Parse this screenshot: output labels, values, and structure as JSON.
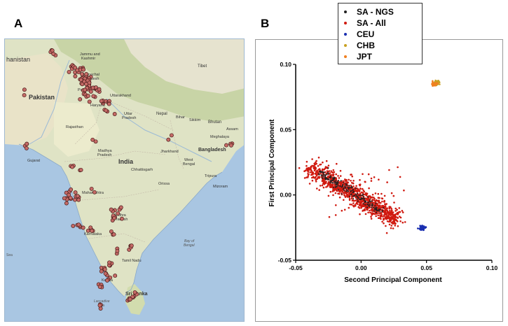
{
  "figure": {
    "panel_a_label": "A",
    "panel_b_label": "B"
  },
  "map": {
    "labels": {
      "afghanistan": "hanistan",
      "pakistan": "Pakistan",
      "jammu": "Jammu and\nKashmir",
      "himachal": "Himachal\nPradesh",
      "punjab": "Punjab",
      "uttarakhand": "Uttarakhand",
      "haryana": "Haryana",
      "tibet": "Tibet",
      "uttar": "Uttar\nPradesh",
      "nepal": "Nepal",
      "sikkim": "Sikkim",
      "bhutan": "Bhutan",
      "assam": "Assam",
      "rajasthan": "Rajasthan",
      "bihar": "Bihar",
      "meghalaya": "Meghalaya",
      "bangladesh": "Bangladesh",
      "gujarat": "Gujarat",
      "madhya": "Madhya\nPradesh",
      "jharkhand": "Jharkhand",
      "india": "India",
      "westbengal": "West\nBengal",
      "chhattisgarh": "Chhattisgarh",
      "tripura": "Tripura",
      "mizoram": "Mizoram",
      "orissa": "Orissa",
      "maharashtra": "Maharashtra",
      "andhra": "Andhra\nPradesh",
      "karnataka": "Karnataka",
      "bayofbengal": "Bay of\nBengal",
      "sea": "Sea",
      "tamilnadu": "Tamil Nadu",
      "kerala": "Kerala",
      "srilanka": "Sri Lanka",
      "laccadive": "Laccadive\nSea"
    }
  },
  "legend": {
    "items": [
      {
        "label": "SA - NGS",
        "color": "#222222"
      },
      {
        "label": "SA - All",
        "color": "#d01a10"
      },
      {
        "label": "CEU",
        "color": "#1a2fb0"
      },
      {
        "label": "CHB",
        "color": "#c8a020"
      },
      {
        "label": "JPT",
        "color": "#f08020"
      }
    ]
  },
  "chart_data": {
    "type": "scatter",
    "xlabel": "Second Principal Component",
    "ylabel": "First Principal Component",
    "xlim": [
      -0.05,
      0.1
    ],
    "ylim": [
      -0.05,
      0.1
    ],
    "xticks": [
      "-0.05",
      "0.00",
      "0.05",
      "0.10"
    ],
    "yticks": [
      "0.10",
      "0.05",
      "0.00",
      "-0.05"
    ],
    "xtick_values": [
      -0.05,
      0.0,
      0.05,
      0.1
    ],
    "ytick_values": [
      0.1,
      0.05,
      0.0,
      -0.05
    ],
    "series": [
      {
        "name": "SA - All",
        "color": "#d01a10",
        "cluster": "elongated band from (-0.038, 0.020) to (0.030, -0.022), with scattered outliers up to (0.032, 0.020)"
      },
      {
        "name": "SA - NGS",
        "color": "#222222",
        "cluster": "within band from (-0.032, 0.018) to (0.015, -0.012)"
      },
      {
        "name": "CEU",
        "color": "#1a2fb0",
        "center": [
          0.047,
          -0.025
        ]
      },
      {
        "name": "CHB",
        "color": "#c8a020",
        "center": [
          0.058,
          0.086
        ]
      },
      {
        "name": "JPT",
        "color": "#f08020",
        "center": [
          0.056,
          0.085
        ]
      }
    ]
  }
}
